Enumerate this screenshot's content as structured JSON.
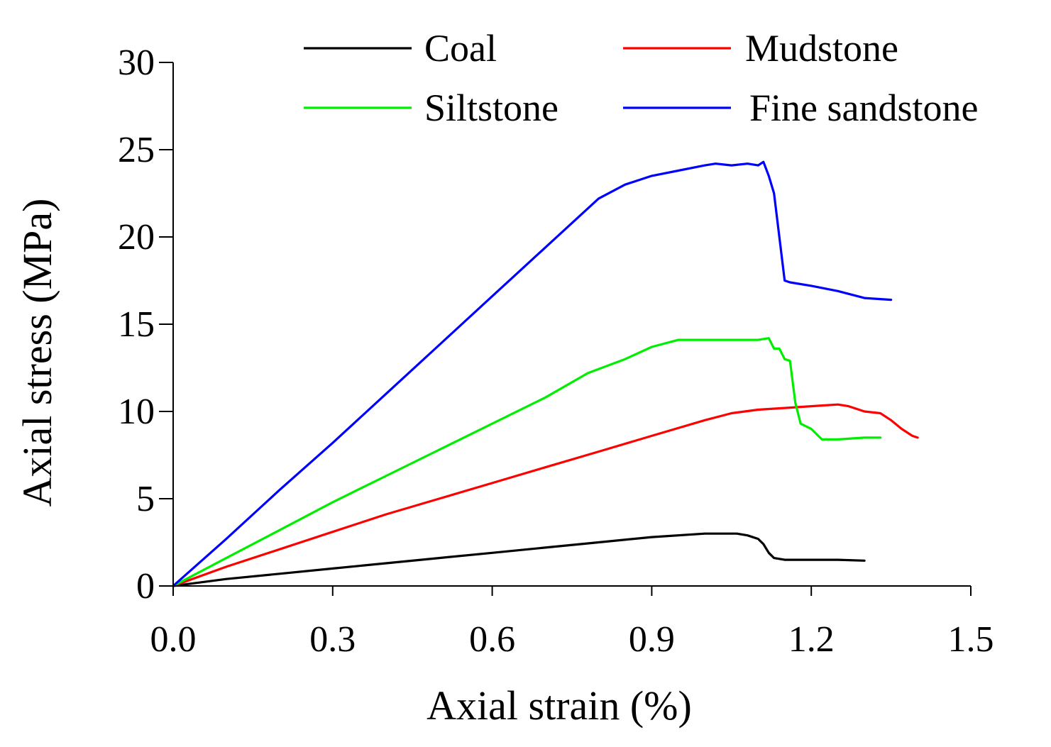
{
  "chart_data": {
    "type": "line",
    "title": "",
    "xlabel": "Axial strain (%)",
    "ylabel": "Axial stress (MPa)",
    "xlim": [
      0,
      1.5
    ],
    "ylim": [
      0,
      30
    ],
    "xticks": [
      "0.0",
      "0.3",
      "0.6",
      "0.9",
      "1.2",
      "1.5"
    ],
    "xtick_values": [
      0,
      0.3,
      0.6,
      0.9,
      1.2,
      1.5
    ],
    "yticks": [
      "0",
      "5",
      "10",
      "15",
      "20",
      "25",
      "30"
    ],
    "ytick_values": [
      0,
      5,
      10,
      15,
      20,
      25,
      30
    ],
    "grid": false,
    "legend_position": "top",
    "series": [
      {
        "name": "Coal",
        "color": "#000000",
        "x": [
          0,
          0.1,
          0.2,
          0.3,
          0.4,
          0.5,
          0.6,
          0.7,
          0.8,
          0.9,
          1.0,
          1.06,
          1.08,
          1.1,
          1.11,
          1.12,
          1.13,
          1.15,
          1.2,
          1.25,
          1.3
        ],
        "y": [
          0,
          0.4,
          0.7,
          1.0,
          1.3,
          1.6,
          1.9,
          2.2,
          2.5,
          2.8,
          3.0,
          3.0,
          2.9,
          2.7,
          2.4,
          1.9,
          1.6,
          1.5,
          1.5,
          1.5,
          1.45
        ]
      },
      {
        "name": "Mudstone",
        "color": "#ff0000",
        "x": [
          0,
          0.1,
          0.2,
          0.3,
          0.4,
          0.5,
          0.6,
          0.7,
          0.8,
          0.9,
          1.0,
          1.05,
          1.1,
          1.15,
          1.2,
          1.25,
          1.27,
          1.3,
          1.33,
          1.35,
          1.37,
          1.39,
          1.4
        ],
        "y": [
          0,
          1.1,
          2.1,
          3.1,
          4.1,
          5.0,
          5.9,
          6.8,
          7.7,
          8.6,
          9.5,
          9.9,
          10.1,
          10.2,
          10.3,
          10.4,
          10.3,
          10.0,
          9.9,
          9.5,
          9.0,
          8.6,
          8.5
        ]
      },
      {
        "name": "Siltstone",
        "color": "#00ee00",
        "x": [
          0,
          0.1,
          0.2,
          0.3,
          0.4,
          0.5,
          0.6,
          0.7,
          0.78,
          0.85,
          0.9,
          0.95,
          1.0,
          1.05,
          1.1,
          1.12,
          1.13,
          1.14,
          1.15,
          1.16,
          1.17,
          1.18,
          1.2,
          1.22,
          1.25,
          1.3,
          1.33
        ],
        "y": [
          0,
          1.6,
          3.2,
          4.8,
          6.3,
          7.8,
          9.3,
          10.8,
          12.2,
          13.0,
          13.7,
          14.1,
          14.1,
          14.1,
          14.1,
          14.2,
          13.6,
          13.6,
          13.0,
          12.9,
          10.5,
          9.3,
          9.0,
          8.4,
          8.4,
          8.5,
          8.5
        ]
      },
      {
        "name": "Fine sandstone",
        "color": "#0000ff",
        "x": [
          0,
          0.1,
          0.2,
          0.3,
          0.4,
          0.5,
          0.6,
          0.7,
          0.8,
          0.85,
          0.9,
          0.95,
          1.0,
          1.02,
          1.05,
          1.08,
          1.1,
          1.11,
          1.12,
          1.13,
          1.14,
          1.15,
          1.16,
          1.2,
          1.25,
          1.3,
          1.35
        ],
        "y": [
          0,
          2.7,
          5.5,
          8.2,
          11.0,
          13.8,
          16.6,
          19.4,
          22.2,
          23.0,
          23.5,
          23.8,
          24.1,
          24.2,
          24.1,
          24.2,
          24.1,
          24.3,
          23.5,
          22.5,
          20.0,
          17.5,
          17.4,
          17.2,
          16.9,
          16.5,
          16.4
        ]
      }
    ]
  }
}
